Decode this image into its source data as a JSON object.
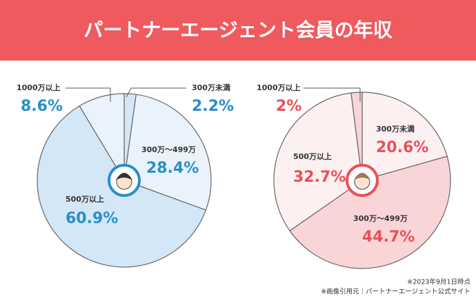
{
  "title": "パートナーエージェント会員の年収",
  "chart_data": [
    {
      "type": "pie",
      "categories": [
        "300万未満",
        "300万～499万",
        "500万以上",
        "1000万以上"
      ],
      "values": [
        2.2,
        28.4,
        60.9,
        8.6
      ],
      "value_labels": [
        "2.2%",
        "28.4%",
        "60.9%",
        "8.6%"
      ],
      "colors": [
        "#d3e7f6",
        "#eaf3fb",
        "#d3e7f6",
        "#eaf3fb"
      ],
      "label_color": "#2a8fc8"
    },
    {
      "type": "pie",
      "categories": [
        "300万未満",
        "300万～499万",
        "500万以上",
        "1000万以上"
      ],
      "values": [
        20.6,
        44.7,
        32.7,
        2
      ],
      "value_labels": [
        "20.6%",
        "44.7%",
        "32.7%",
        "2%"
      ],
      "colors": [
        "#fdf0f0",
        "#f9d5d7",
        "#fdf0f0",
        "#f9d5d7"
      ],
      "label_color": "#e9505a"
    }
  ],
  "notes": [
    "※2023年9月1日時点",
    "※画像引用元｜パートナーエージェント公式サイト"
  ]
}
